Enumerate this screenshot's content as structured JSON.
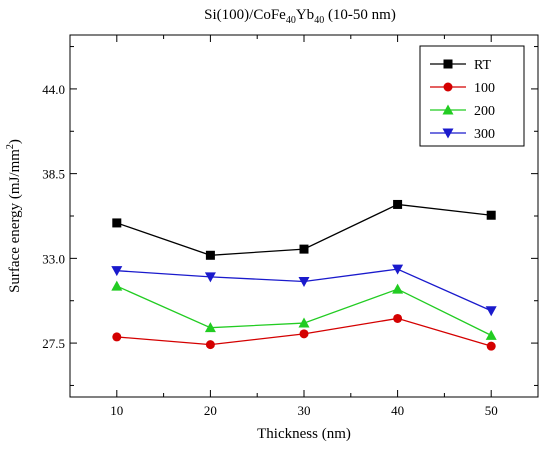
{
  "chart_data": {
    "type": "line",
    "title": {
      "prefix": "Si(100)/Co",
      "parts": [
        {
          "text": "Si(100)/Co",
          "sub": ""
        },
        {
          "text": "Fe",
          "sub": "40"
        },
        {
          "text": "Yb",
          "sub": "40"
        },
        {
          "text": " (10-50 nm)",
          "sub": "20"
        }
      ]
    },
    "xlabel": "Thickness (nm)",
    "ylabel": {
      "main": "Surface energy (mJ/mm",
      "sup": "2",
      "tail": ")"
    },
    "x": [
      10,
      20,
      30,
      40,
      50
    ],
    "xticks": [
      "10",
      "20",
      "30",
      "40",
      "50"
    ],
    "yticks": [
      "27.5",
      "33.0",
      "38.5",
      "44.0"
    ],
    "ytick_values": [
      27.5,
      33.0,
      38.5,
      44.0
    ],
    "xlim": [
      5,
      55
    ],
    "ylim": [
      24.0,
      47.5
    ],
    "grid": false,
    "legend_position": "top-right",
    "series": [
      {
        "name": "RT",
        "color": "#000000",
        "marker": "square",
        "values": [
          35.3,
          33.2,
          33.6,
          36.5,
          35.8
        ]
      },
      {
        "name": "100",
        "color": "#d40000",
        "marker": "circle",
        "values": [
          27.9,
          27.4,
          28.1,
          29.1,
          27.3
        ]
      },
      {
        "name": "200",
        "color": "#22cc22",
        "marker": "triangle-up",
        "values": [
          31.2,
          28.5,
          28.8,
          31.0,
          28.0
        ]
      },
      {
        "name": "300",
        "color": "#1a1acc",
        "marker": "triangle-down",
        "values": [
          32.2,
          31.8,
          31.5,
          32.3,
          29.6
        ]
      }
    ]
  }
}
